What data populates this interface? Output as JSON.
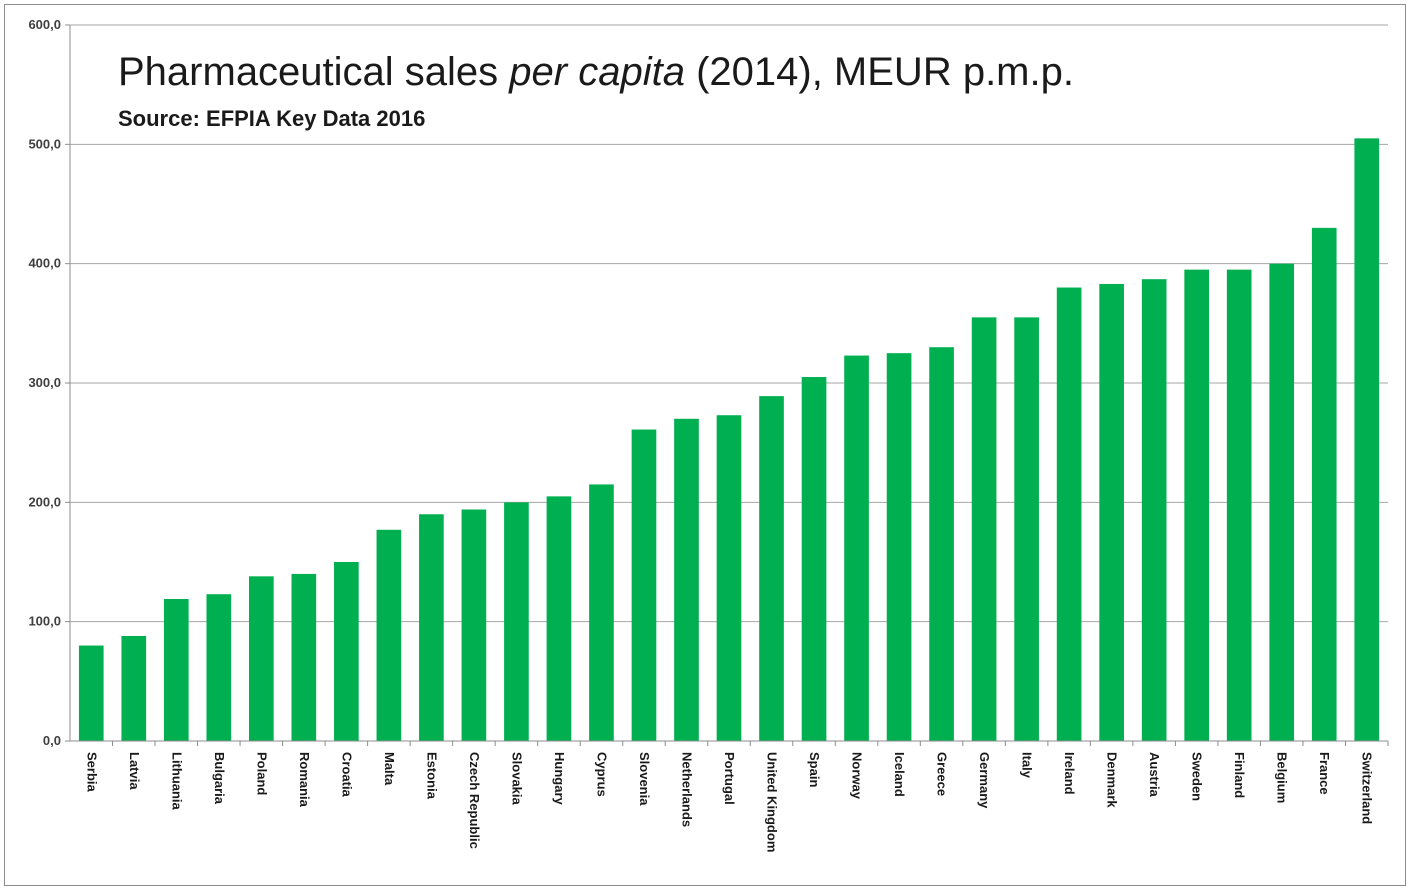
{
  "chart_data": {
    "type": "bar",
    "title_parts": {
      "before": "Pharmaceutical sales ",
      "italic": "per capita",
      "after": " (2014), MEUR p.m.p."
    },
    "subtitle": "Source: EFPIA Key Data 2016",
    "xlabel": "",
    "ylabel": "",
    "ylim": [
      0,
      600
    ],
    "yticks": [
      "0,0",
      "100,0",
      "200,0",
      "300,0",
      "400,0",
      "500,0",
      "600,0"
    ],
    "grid": true,
    "legend": "none",
    "bar_color": "#00b050",
    "categories": [
      "Serbia",
      "Latvia",
      "Lithuania",
      "Bulgaria",
      "Poland",
      "Romania",
      "Croatia",
      "Malta",
      "Estonia",
      "Czech Republic",
      "Slovakia",
      "Hungary",
      "Cyprus",
      "Slovenia",
      "Netherlands",
      "Portugal",
      "United Kingdom",
      "Spain",
      "Norway",
      "Iceland",
      "Greece",
      "Germany",
      "Italy",
      "Ireland",
      "Denmark",
      "Austria",
      "Sweden",
      "Finland",
      "Belgium",
      "France",
      "Switzerland"
    ],
    "values": [
      80,
      88,
      119,
      123,
      138,
      140,
      150,
      177,
      190,
      194,
      200,
      205,
      215,
      261,
      270,
      273,
      289,
      305,
      323,
      325,
      330,
      355,
      355,
      380,
      383,
      387,
      395,
      395,
      400,
      430,
      505
    ]
  }
}
